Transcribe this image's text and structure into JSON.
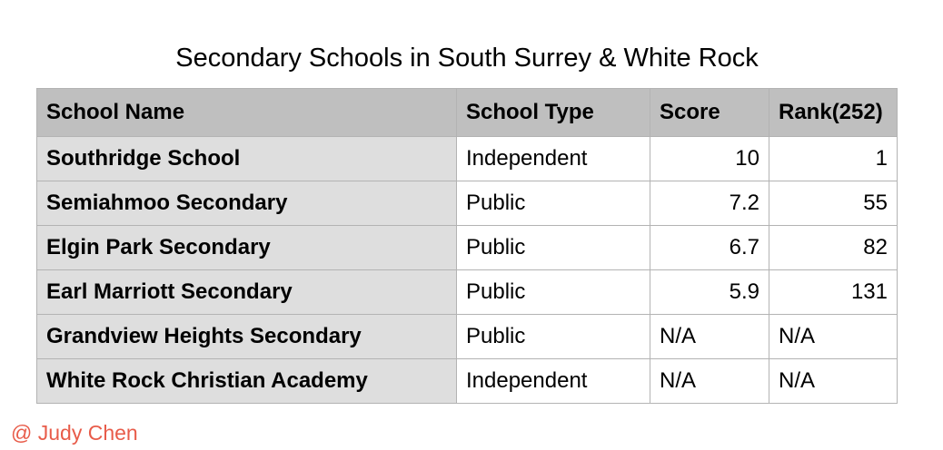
{
  "chart_data": {
    "type": "table",
    "title": "Secondary Schools in South Surrey & White Rock",
    "columns": [
      "School Name",
      "School Type",
      "Score",
      "Rank(252)"
    ],
    "rows": [
      {
        "name": "Southridge School",
        "type": "Independent",
        "score": "10",
        "rank": "1"
      },
      {
        "name": "Semiahmoo Secondary",
        "type": "Public",
        "score": "7.2",
        "rank": "55"
      },
      {
        "name": "Elgin Park Secondary",
        "type": "Public",
        "score": "6.7",
        "rank": "82"
      },
      {
        "name": "Earl Marriott Secondary",
        "type": "Public",
        "score": "5.9",
        "rank": "131"
      },
      {
        "name": "Grandview Heights Secondary",
        "type": "Public",
        "score": "N/A",
        "rank": "N/A"
      },
      {
        "name": "White Rock Christian Academy",
        "type": "Independent",
        "score": "N/A",
        "rank": "N/A"
      }
    ]
  },
  "credit": "@ Judy Chen",
  "colors": {
    "header_bg": "#bfbfbf",
    "name_col_bg": "#dedede",
    "border": "#b3b3b3",
    "credit": "#e85c4a"
  }
}
